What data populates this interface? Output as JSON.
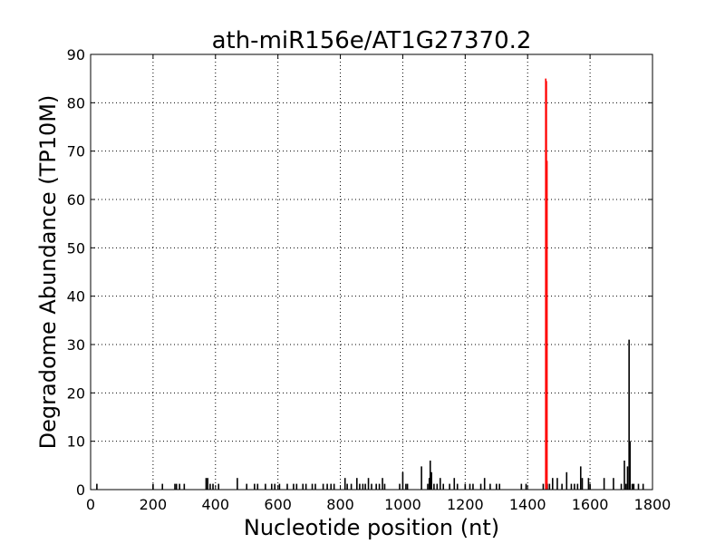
{
  "chart_data": {
    "type": "bar",
    "title": "ath-miR156e/AT1G27370.2",
    "xlabel": "Nucleotide position (nt)",
    "ylabel": "Degradome Abundance (TP10M)",
    "xlim": [
      0,
      1800
    ],
    "ylim": [
      0,
      90
    ],
    "xticks": [
      0,
      200,
      400,
      600,
      800,
      1000,
      1200,
      1400,
      1600,
      1800
    ],
    "yticks": [
      0,
      10,
      20,
      30,
      40,
      50,
      60,
      70,
      80,
      90
    ],
    "grid": true,
    "colors": {
      "background_bars": "#000000",
      "target_site": "#ff0000"
    },
    "series": [
      {
        "values": [
          [
            20,
            1.2
          ],
          [
            200,
            1.2
          ],
          [
            230,
            1.2
          ],
          [
            270,
            1.2
          ],
          [
            275,
            1.2
          ],
          [
            285,
            1.2
          ],
          [
            300,
            1.2
          ],
          [
            370,
            2.4
          ],
          [
            375,
            2.4
          ],
          [
            383,
            1.2
          ],
          [
            392,
            1.2
          ],
          [
            410,
            1.2
          ],
          [
            470,
            2.4
          ],
          [
            500,
            1.2
          ],
          [
            525,
            1.2
          ],
          [
            535,
            1.2
          ],
          [
            560,
            1.2
          ],
          [
            580,
            1.2
          ],
          [
            590,
            1.2
          ],
          [
            605,
            1.2
          ],
          [
            630,
            1.2
          ],
          [
            650,
            1.2
          ],
          [
            660,
            1.2
          ],
          [
            680,
            1.2
          ],
          [
            690,
            1.2
          ],
          [
            710,
            1.2
          ],
          [
            720,
            1.2
          ],
          [
            745,
            1.2
          ],
          [
            758,
            1.2
          ],
          [
            770,
            1.2
          ],
          [
            780,
            1.2
          ],
          [
            815,
            2.4
          ],
          [
            822,
            1.2
          ],
          [
            835,
            1.2
          ],
          [
            853,
            2.4
          ],
          [
            862,
            1.2
          ],
          [
            872,
            1.2
          ],
          [
            880,
            1.2
          ],
          [
            890,
            2.4
          ],
          [
            900,
            1.2
          ],
          [
            915,
            1.2
          ],
          [
            925,
            1.2
          ],
          [
            935,
            2.4
          ],
          [
            942,
            1.2
          ],
          [
            990,
            1.2
          ],
          [
            1000,
            3.6
          ],
          [
            1010,
            1.2
          ],
          [
            1015,
            1.2
          ],
          [
            1060,
            4.8
          ],
          [
            1080,
            1.2
          ],
          [
            1085,
            2.4
          ],
          [
            1088,
            6.0
          ],
          [
            1092,
            3.6
          ],
          [
            1100,
            1.2
          ],
          [
            1110,
            1.2
          ],
          [
            1120,
            2.4
          ],
          [
            1130,
            1.2
          ],
          [
            1150,
            1.2
          ],
          [
            1165,
            2.4
          ],
          [
            1175,
            1.2
          ],
          [
            1200,
            1.2
          ],
          [
            1215,
            1.2
          ],
          [
            1225,
            1.2
          ],
          [
            1250,
            1.2
          ],
          [
            1262,
            2.4
          ],
          [
            1280,
            1.2
          ],
          [
            1300,
            1.2
          ],
          [
            1310,
            1.2
          ],
          [
            1380,
            1.2
          ],
          [
            1395,
            1.2
          ],
          [
            1450,
            1.2
          ],
          [
            1463,
            1.2
          ],
          [
            1470,
            1.2
          ],
          [
            1480,
            2.4
          ],
          [
            1495,
            2.4
          ],
          [
            1510,
            1.2
          ],
          [
            1525,
            3.6
          ],
          [
            1540,
            1.2
          ],
          [
            1550,
            1.2
          ],
          [
            1560,
            1.2
          ],
          [
            1570,
            4.8
          ],
          [
            1575,
            2.4
          ],
          [
            1595,
            2.4
          ],
          [
            1600,
            1.2
          ],
          [
            1645,
            2.4
          ],
          [
            1675,
            2.4
          ],
          [
            1700,
            1.2
          ],
          [
            1710,
            6.0
          ],
          [
            1715,
            1.2
          ],
          [
            1720,
            4.8
          ],
          [
            1725,
            31.0
          ],
          [
            1728,
            10.0
          ],
          [
            1735,
            1.2
          ],
          [
            1740,
            1.2
          ],
          [
            1755,
            1.2
          ],
          [
            1770,
            1.2
          ]
        ]
      },
      {
        "values": [
          [
            1458,
            85.0
          ],
          [
            1460,
            84.5
          ],
          [
            1462,
            68.0
          ]
        ]
      }
    ]
  }
}
